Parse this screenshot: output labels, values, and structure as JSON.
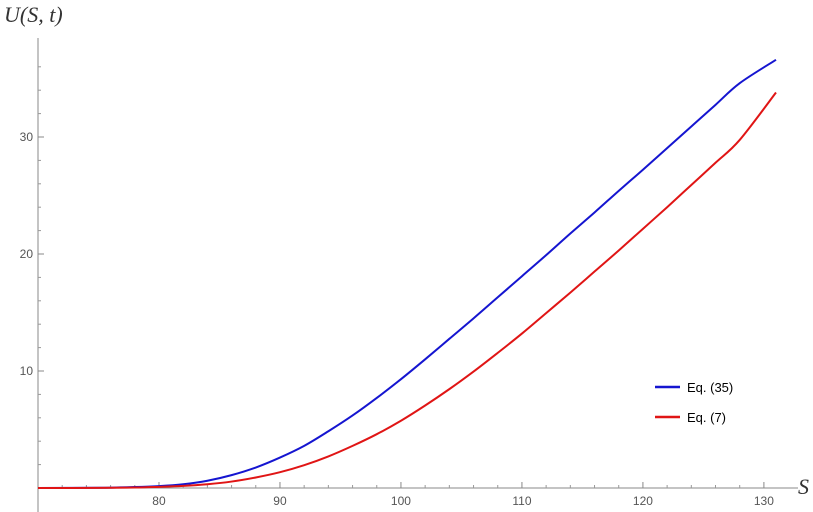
{
  "chart_data": {
    "type": "line",
    "title": "",
    "xlabel": "S",
    "ylabel": "U(S, t)",
    "xlim": [
      70,
      131
    ],
    "ylim": [
      -1,
      38.5
    ],
    "xticks": [
      80,
      90,
      100,
      110,
      120,
      130
    ],
    "yticks": [
      10,
      20,
      30
    ],
    "grid": false,
    "legend_position": "right",
    "series": [
      {
        "name": "Eq. (35)",
        "color": "#1515d0",
        "x": [
          70,
          75,
          78,
          80,
          82,
          84,
          86,
          88,
          90,
          92,
          94,
          96,
          98,
          100,
          102,
          104,
          106,
          108,
          110,
          112,
          114,
          116,
          118,
          120,
          122,
          124,
          126,
          128,
          131
        ],
        "y": [
          0.0,
          0.02,
          0.08,
          0.16,
          0.32,
          0.62,
          1.1,
          1.75,
          2.6,
          3.6,
          4.85,
          6.2,
          7.7,
          9.3,
          11.0,
          12.75,
          14.5,
          16.3,
          18.1,
          19.9,
          21.75,
          23.55,
          25.4,
          27.2,
          29.05,
          30.9,
          32.75,
          34.6,
          36.6
        ]
      },
      {
        "name": "Eq. (7)",
        "color": "#e01515",
        "x": [
          70,
          75,
          78,
          80,
          82,
          84,
          86,
          88,
          90,
          92,
          94,
          96,
          98,
          100,
          102,
          104,
          106,
          108,
          110,
          112,
          114,
          116,
          118,
          120,
          122,
          124,
          126,
          128,
          131
        ],
        "y": [
          0.0,
          0.01,
          0.04,
          0.1,
          0.18,
          0.32,
          0.55,
          0.9,
          1.35,
          1.95,
          2.7,
          3.6,
          4.6,
          5.75,
          7.05,
          8.45,
          9.95,
          11.55,
          13.2,
          14.95,
          16.7,
          18.5,
          20.3,
          22.15,
          24.0,
          25.9,
          27.8,
          29.75,
          33.8
        ]
      }
    ]
  }
}
